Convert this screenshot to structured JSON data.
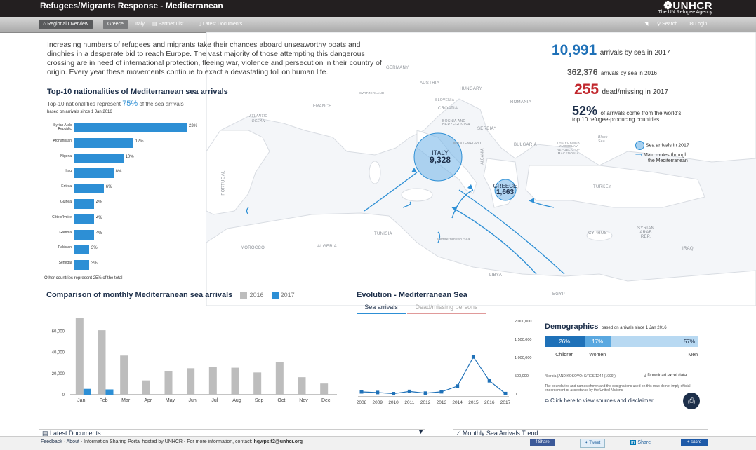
{
  "header": {
    "title": "Refugees/Migrants Response - Mediterranean",
    "logo_text": "UNHCR",
    "logo_sub": "The UN Refugee Agency"
  },
  "nav": {
    "items": [
      "Regional Overview",
      "Greece",
      "Italy",
      "Partner List",
      "Latest Documents"
    ],
    "search": "Search",
    "login": "Login"
  },
  "intro": "Increasing numbers of refugees and migrants take their chances aboard unseaworthy boats and dinghies in a desperate bid to reach Europe. The vast majority of those attempting this dangerous crossing are in need of international protection, fleeing war, violence and persecution in their country of origin. Every year these movements continue to exact a devastating toll on human life.",
  "stats": {
    "arrivals_2017": "10,991",
    "arrivals_2017_label": "arrivals by sea in 2017",
    "arrivals_2016": "362,376",
    "arrivals_2016_label": "arrivals by sea in 2016",
    "dead_2017": "255",
    "dead_label": "dead/missing in 2017",
    "pct": "52%",
    "pct_label_a": "of arrivals come from the world's",
    "pct_label_b": "top 10 refugee-producing countries"
  },
  "legend": {
    "circle": "Sea arrivals in 2017",
    "route_a": "Main routes through",
    "route_b": "the Mediterranean"
  },
  "map_labels": {
    "germany": "GERMANY",
    "austria": "AUSTRIA",
    "hungary": "HUNGARY",
    "switzerland": "SWITZERLAND",
    "france": "FRANCE",
    "slovenia": "SLOVENIA",
    "croatia": "CROATIA",
    "bosnia_a": "BOSNIA AND",
    "bosnia_b": "HERZEGOVINA",
    "serbia": "SERBIA*",
    "romania": "ROMANIA",
    "montenegro": "MONTENEGRO",
    "bulgaria": "BULGARIA",
    "fyrom_a": "THE FORMER",
    "fyrom_b": "YUGOSLAV",
    "fyrom_c": "REPUBLIC OF",
    "fyrom_d": "MACEDONIA",
    "black_sea_a": "Black",
    "black_sea_b": "Sea",
    "albania": "ALBANIA",
    "atlantic_a": "ATLANTIC",
    "atlantic_b": "OCEAN",
    "portugal": "PORTUGAL",
    "turkey": "TURKEY",
    "tunisia": "TUNISIA",
    "med_sea": "Mediterranean Sea",
    "morocco": "MOROCCO",
    "algeria": "ALGERIA",
    "libya": "LIBYA",
    "egypt": "EGYPT",
    "cyprus": "CYPRUS",
    "syria_a": "SYRIAN",
    "syria_b": "ARAB",
    "syria_c": "REP.",
    "iraq": "IRAQ",
    "italy": "ITALY",
    "italy_val": "9,328",
    "greece": "GREECE",
    "greece_val": "1,663"
  },
  "nationalities": {
    "title": "Top-10 nationalities of Mediterranean sea arrivals",
    "sub_a": "Top-10 nationalities represent",
    "sub_pct": "75%",
    "sub_b": "of the sea arrivals",
    "basis": "based on arrivals since 1 Jan 2016",
    "note": "Other countries represent 25% of the total",
    "rows": [
      {
        "label": "Syrian Arab Republic",
        "pct": 23,
        "text": "23%"
      },
      {
        "label": "Afghanistan",
        "pct": 12,
        "text": "12%"
      },
      {
        "label": "Nigeria",
        "pct": 10,
        "text": "10%"
      },
      {
        "label": "Iraq",
        "pct": 8,
        "text": "8%"
      },
      {
        "label": "Eritrea",
        "pct": 6,
        "text": "6%"
      },
      {
        "label": "Guinea",
        "pct": 4,
        "text": "4%"
      },
      {
        "label": "Côte d'Ivoire",
        "pct": 4,
        "text": "4%"
      },
      {
        "label": "Gambia",
        "pct": 4,
        "text": "4%"
      },
      {
        "label": "Pakistan",
        "pct": 3,
        "text": "3%"
      },
      {
        "label": "Senegal",
        "pct": 3,
        "text": "3%"
      }
    ]
  },
  "chart_data": [
    {
      "type": "bar",
      "title": "Comparison of monthly Mediterranean sea arrivals",
      "categories": [
        "Jan",
        "Feb",
        "Mar",
        "Apr",
        "May",
        "Jun",
        "Jul",
        "Aug",
        "Sep",
        "Oct",
        "Nov",
        "Dec"
      ],
      "series": [
        {
          "name": "2016",
          "color": "#bdbdbd",
          "values": [
            73000,
            61000,
            37000,
            13500,
            22000,
            25000,
            26000,
            25500,
            21000,
            31000,
            16500,
            10500
          ]
        },
        {
          "name": "2017",
          "color": "#2d8fd5",
          "values": [
            5500,
            5000,
            0,
            0,
            0,
            0,
            0,
            0,
            0,
            0,
            0,
            0
          ]
        }
      ],
      "yticks": [
        "0",
        "20,000",
        "40,000",
        "60,000"
      ],
      "ylim": [
        0,
        75000
      ]
    },
    {
      "type": "line",
      "title": "Evolution - Mediterranean Sea",
      "tabs": [
        "Sea arrivals",
        "Dead/missing persons"
      ],
      "x": [
        "2008",
        "2009",
        "2010",
        "2011",
        "2012",
        "2013",
        "2014",
        "2015",
        "2016",
        "2017"
      ],
      "series": [
        {
          "color": "#1f71b8",
          "values": [
            58000,
            40000,
            9000,
            70000,
            22000,
            60000,
            216000,
            1015000,
            362000,
            11000
          ]
        }
      ],
      "yticks": [
        "0",
        "500,000",
        "1,000,000",
        "1,500,000",
        "2,000,000"
      ],
      "ylim": [
        0,
        2000000
      ]
    },
    {
      "type": "bar",
      "title": "Demographics",
      "subtitle": "based on arrivals since 1 Jan 2016",
      "categories": [
        "Children",
        "Women",
        "Men"
      ],
      "values": [
        26,
        17,
        57
      ],
      "labels": [
        "26%",
        "17%",
        "57%"
      ]
    }
  ],
  "demographics_notes": {
    "serbia": "*Serbia (AND KOSOVO: S/RES/1244 (1999))",
    "download": "Download excel data",
    "disclaimer": "The boundaries and names shown and the designations used on this map do not imply official endorsement or acceptance by the United Nations",
    "sources": "Click here to view sources and disclaimer"
  },
  "bottom": {
    "latest_docs": "Latest Documents",
    "monthly_trend": "Monthly Sea Arrivals Trend"
  },
  "footer": {
    "feedback": "Feedback",
    "sep": "·",
    "about": "About",
    "hosted": "- Information Sharing Portal hosted by UNHCR - For more information, contact:",
    "email": "hqwpsit2@unhcr.org",
    "fb": "Share",
    "tw": "Tweet",
    "li": "Share",
    "share": "share"
  },
  "colors": {
    "accent": "#1f71b8",
    "bar": "#2d8fd5",
    "red": "#c1272d",
    "grey": "#bdbdbd"
  }
}
